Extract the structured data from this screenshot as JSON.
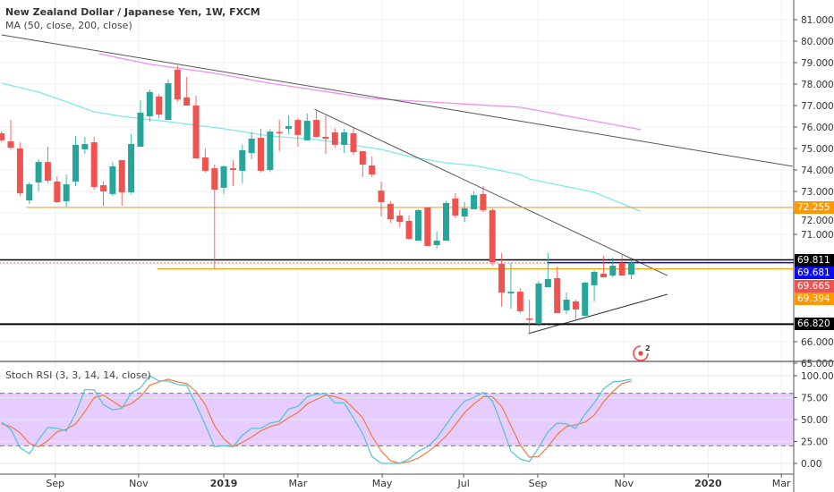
{
  "header": {
    "title": "New Zealand Dollar / Japanese Yen, 1W, FXCM",
    "indicator": "MA (50, close, 200, close)"
  },
  "rsi_pane": {
    "title": "Stoch RSI (3, 3, 14, 14, close)"
  },
  "price_labels": [
    {
      "text": "72.255",
      "value": 72.255,
      "color": "#ff9800",
      "text_color": "#ffffff"
    },
    {
      "text": "69.811",
      "value": 69.811,
      "color": "#000000",
      "text_color": "#ffffff"
    },
    {
      "text": "69.681",
      "value": 69.681,
      "color": "#0b0bf0",
      "text_color": "#ffffff"
    },
    {
      "text": "69.665",
      "value": 69.665,
      "color": "#ef5350",
      "text_color": "#ffffff"
    },
    {
      "text": "69.394",
      "value": 69.394,
      "color": "#ff9800",
      "text_color": "#ffffff"
    },
    {
      "text": "66.820",
      "value": 66.82,
      "color": "#000000",
      "text_color": "#ffffff"
    }
  ],
  "icons": [
    "alert-clock-logo-icon"
  ],
  "chart_data": [
    {
      "type": "candlestick",
      "title": "New Zealand Dollar / Japanese Yen, 1W, FXCM",
      "ylim": [
        64.7,
        81.9
      ],
      "y_ticks": [
        "81.000",
        "80.000",
        "79.000",
        "78.000",
        "77.000",
        "76.000",
        "75.000",
        "74.000",
        "73.000",
        "72.000",
        "71.000",
        "66.000",
        "65.000"
      ],
      "x_ticks": [
        {
          "label": "Sep",
          "candle": 6.8
        },
        {
          "label": "Nov",
          "candle": 15.8
        },
        {
          "label": "2019",
          "candle": 25,
          "bold": true
        },
        {
          "label": "Mar",
          "candle": 33
        },
        {
          "label": "May",
          "candle": 42.1
        },
        {
          "label": "Jul",
          "candle": 50.9
        },
        {
          "label": "Sep",
          "candle": 58.9
        },
        {
          "label": "Nov",
          "candle": 68.2
        },
        {
          "label": "2020",
          "candle": 77.3,
          "bold": true
        },
        {
          "label": "Mar",
          "candle": 85.2
        }
      ],
      "colors": {
        "up": "#26a69a",
        "down": "#ef5350",
        "ma50": "#7de8ee",
        "ma200": "#f08ff0"
      },
      "ohlc": [
        [
          75.71,
          75.8,
          75.3,
          75.38
        ],
        [
          75.33,
          76.33,
          74.96,
          75.04
        ],
        [
          75.0,
          75.29,
          72.79,
          72.92
        ],
        [
          72.58,
          73.42,
          72.42,
          73.33
        ],
        [
          73.42,
          74.5,
          73.0,
          74.37
        ],
        [
          74.37,
          75.08,
          73.38,
          73.5
        ],
        [
          73.46,
          73.71,
          72.46,
          72.5
        ],
        [
          72.54,
          73.79,
          72.29,
          73.33
        ],
        [
          73.46,
          75.58,
          73.25,
          75.17
        ],
        [
          74.96,
          75.54,
          74.75,
          75.21
        ],
        [
          75.29,
          75.54,
          73.08,
          73.21
        ],
        [
          73.29,
          73.46,
          72.33,
          73.0
        ],
        [
          72.88,
          74.38,
          72.79,
          74.17
        ],
        [
          74.46,
          74.46,
          72.33,
          72.96
        ],
        [
          72.96,
          75.67,
          72.88,
          75.21
        ],
        [
          75.08,
          77.25,
          75.08,
          76.67
        ],
        [
          76.5,
          77.75,
          76.25,
          77.63
        ],
        [
          77.42,
          77.54,
          76.38,
          76.58
        ],
        [
          76.33,
          78.21,
          76.33,
          78.04
        ],
        [
          78.67,
          78.88,
          77.17,
          77.29
        ],
        [
          77.38,
          78.33,
          77.0,
          77.0
        ],
        [
          77.0,
          77.46,
          74.54,
          74.54
        ],
        [
          74.58,
          75.0,
          73.88,
          73.96
        ],
        [
          74.08,
          74.25,
          69.42,
          73.08
        ],
        [
          73.17,
          74.21,
          72.88,
          74.17
        ],
        [
          74.08,
          74.46,
          73.25,
          74.0
        ],
        [
          73.96,
          75.17,
          73.38,
          74.92
        ],
        [
          74.79,
          75.75,
          74.5,
          75.46
        ],
        [
          75.5,
          75.92,
          73.88,
          73.96
        ],
        [
          74.0,
          75.9,
          73.9,
          75.79
        ],
        [
          75.77,
          76.33,
          74.88,
          75.75
        ],
        [
          75.92,
          76.54,
          75.67,
          76.04
        ],
        [
          76.33,
          76.42,
          75.08,
          75.63
        ],
        [
          75.38,
          76.63,
          75.38,
          76.29
        ],
        [
          76.33,
          76.79,
          75.5,
          75.54
        ],
        [
          75.54,
          76.54,
          74.75,
          75.46
        ],
        [
          75.75,
          75.96,
          75.04,
          75.17
        ],
        [
          75.17,
          75.92,
          74.79,
          75.75
        ],
        [
          75.71,
          75.96,
          74.71,
          74.83
        ],
        [
          74.88,
          74.88,
          73.67,
          74.25
        ],
        [
          74.21,
          74.63,
          73.67,
          73.79
        ],
        [
          73.04,
          73.46,
          71.83,
          72.5
        ],
        [
          72.42,
          72.54,
          71.54,
          71.71
        ],
        [
          71.88,
          72.13,
          71.33,
          71.58
        ],
        [
          71.63,
          71.88,
          70.75,
          70.79
        ],
        [
          70.71,
          72.17,
          70.71,
          72.13
        ],
        [
          72.25,
          72.25,
          70.46,
          70.46
        ],
        [
          70.5,
          71.13,
          70.33,
          70.71
        ],
        [
          70.71,
          72.54,
          70.71,
          72.46
        ],
        [
          72.67,
          72.92,
          71.75,
          71.88
        ],
        [
          71.83,
          72.5,
          71.58,
          72.21
        ],
        [
          72.17,
          73.0,
          72.17,
          72.83
        ],
        [
          72.88,
          73.25,
          72.04,
          72.13
        ],
        [
          72.13,
          72.21,
          69.54,
          69.71
        ],
        [
          69.63,
          70.13,
          67.63,
          68.29
        ],
        [
          68.25,
          69.67,
          67.54,
          68.33
        ],
        [
          68.33,
          68.5,
          67.33,
          67.42
        ],
        [
          67.08,
          67.96,
          66.38,
          67.04
        ],
        [
          66.83,
          68.83,
          66.71,
          68.71
        ],
        [
          68.54,
          70.13,
          68.54,
          68.92
        ],
        [
          68.96,
          69.5,
          67.33,
          67.33
        ],
        [
          67.46,
          68.29,
          67.29,
          67.96
        ],
        [
          67.88,
          67.96,
          67.04,
          67.5
        ],
        [
          67.21,
          68.79,
          67.21,
          68.75
        ],
        [
          68.63,
          69.33,
          67.88,
          69.25
        ],
        [
          69.17,
          70.0,
          69.0,
          69.0
        ],
        [
          69.08,
          69.92,
          69.0,
          69.54
        ],
        [
          69.67,
          70.04,
          69.08,
          69.08
        ],
        [
          69.13,
          69.92,
          68.92,
          69.681
        ]
      ],
      "ma50": [
        [
          1,
          78.04
        ],
        [
          5,
          77.63
        ],
        [
          7,
          77.33
        ],
        [
          11,
          76.71
        ],
        [
          14,
          76.5
        ],
        [
          19,
          76.25
        ],
        [
          25,
          75.92
        ],
        [
          30,
          75.58
        ],
        [
          35,
          75.42
        ],
        [
          42,
          74.96
        ],
        [
          45,
          74.63
        ],
        [
          49,
          74.33
        ],
        [
          52,
          74.21
        ],
        [
          57,
          73.79
        ],
        [
          58,
          73.58
        ],
        [
          65,
          72.96
        ],
        [
          70,
          72.08
        ]
      ],
      "ma200": [
        [
          11.5,
          79.42
        ],
        [
          17,
          78.92
        ],
        [
          23.5,
          78.54
        ],
        [
          30,
          78.04
        ],
        [
          41,
          77.33
        ],
        [
          57,
          76.92
        ],
        [
          70,
          75.88
        ]
      ],
      "drawings": [
        {
          "name": "long-trendline",
          "color": "#555555",
          "from": [
            1,
            80.29
          ],
          "to": [
            86.4,
            74.17
          ]
        },
        {
          "name": "descending-trendline",
          "color": "#555555",
          "from": [
            34.8,
            76.83
          ],
          "to": [
            72.9,
            69.08
          ]
        },
        {
          "name": "ascending-trendline",
          "color": "#333333",
          "from": [
            57.9,
            66.38
          ],
          "to": [
            72.9,
            68.21
          ]
        },
        {
          "name": "support-line-72255",
          "color": "#ff9800",
          "from": [
            3.7,
            72.255
          ],
          "to": [
            90,
            72.255
          ]
        },
        {
          "name": "support-line-69394",
          "color": "#ff9800",
          "from": [
            17.8,
            69.394
          ],
          "to": [
            90,
            69.394
          ]
        },
        {
          "name": "resistance-line-69811",
          "color": "#000000",
          "from": [
            0,
            69.811
          ],
          "to": [
            90,
            69.811
          ],
          "width": 1.5
        },
        {
          "name": "price-line-69665",
          "color": "#ef5350",
          "from": [
            0,
            69.665
          ],
          "to": [
            90,
            69.665
          ],
          "dotted": true
        },
        {
          "name": "blue-line-69681",
          "color": "#0b0bf0",
          "from": [
            59.9,
            69.681
          ],
          "to": [
            90,
            69.681
          ],
          "width": 1.5
        },
        {
          "name": "support-line-66820",
          "color": "#000000",
          "from": [
            0,
            66.82
          ],
          "to": [
            90,
            66.82
          ],
          "width": 2
        }
      ]
    },
    {
      "type": "line",
      "title": "Stoch RSI (3, 3, 14, 14, close)",
      "ylim": [
        0,
        100
      ],
      "y_ticks": [
        "100.00",
        "75.00",
        "50.00",
        "25.00",
        "0.00"
      ],
      "band": [
        20,
        80
      ],
      "series": [
        {
          "name": "%K",
          "color": "#4fc3d9",
          "values": [
            47,
            39,
            18,
            11,
            27,
            41,
            40,
            37,
            57,
            84,
            84,
            67,
            61,
            63,
            80,
            86,
            100,
            94,
            94,
            90,
            89,
            67,
            44,
            19,
            20,
            19,
            32,
            40,
            40,
            46,
            48,
            62,
            65,
            76,
            79,
            80,
            69,
            69,
            52,
            34,
            8,
            0,
            0,
            0,
            5,
            14,
            19,
            29,
            44,
            59,
            71,
            75,
            81,
            71,
            44,
            14,
            5,
            2,
            18,
            36,
            46,
            45,
            40,
            56,
            69,
            85,
            93,
            94,
            96
          ]
        },
        {
          "name": "%D",
          "color": "#f5793a",
          "values": [
            45,
            42,
            35,
            23,
            19,
            26,
            36,
            39,
            45,
            59,
            75,
            78,
            71,
            64,
            68,
            76,
            89,
            93,
            96,
            93,
            91,
            82,
            67,
            43,
            28,
            19,
            24,
            30,
            37,
            42,
            45,
            52,
            58,
            68,
            73,
            78,
            76,
            73,
            63,
            52,
            31,
            14,
            3,
            0,
            2,
            6,
            13,
            21,
            31,
            44,
            58,
            68,
            76,
            76,
            65,
            43,
            21,
            7,
            8,
            19,
            33,
            42,
            44,
            47,
            55,
            70,
            82,
            91,
            94
          ]
        }
      ]
    }
  ]
}
